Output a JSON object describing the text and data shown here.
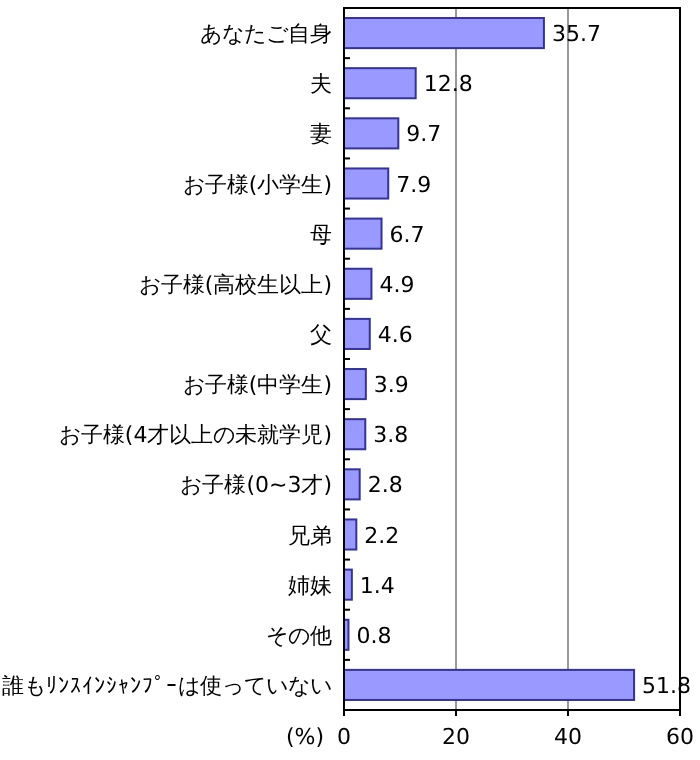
{
  "chart_data": {
    "type": "bar",
    "orientation": "horizontal",
    "categories": [
      "あなたご自身",
      "夫",
      "妻",
      "お子様(小学生)",
      "母",
      "お子様(高校生以上)",
      "父",
      "お子様(中学生)",
      "お子様(4才以上の未就学児)",
      "お子様(0~3才)",
      "兄弟",
      "姉妹",
      "その他",
      "誰もﾘﾝｽｲﾝｼｬﾝﾌﾟｰは使っていない"
    ],
    "values": [
      35.7,
      12.8,
      9.7,
      7.9,
      6.7,
      4.9,
      4.6,
      3.9,
      3.8,
      2.8,
      2.2,
      1.4,
      0.8,
      51.8
    ],
    "color": "#9999ff",
    "xlim": [
      0,
      60
    ],
    "xticks": [
      0,
      20,
      40,
      60
    ],
    "xlabel": "(%)",
    "grid": "x",
    "data_labels": true
  }
}
